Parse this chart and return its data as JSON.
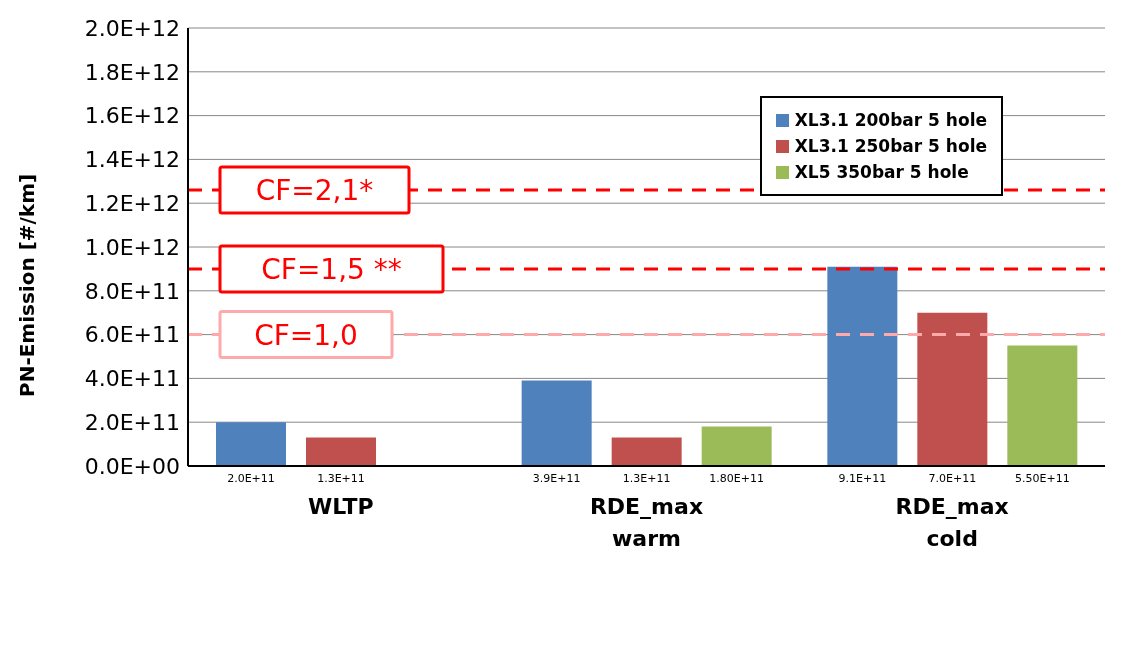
{
  "chart_data": {
    "type": "bar",
    "ylabel": "PN-Emission [#/km]",
    "categories": [
      "WLTP",
      "RDE_max\nwarm",
      "RDE_max\ncold"
    ],
    "series": [
      {
        "name": "XL3.1 200bar 5 hole",
        "color": "#4f81bd",
        "values": [
          200000000000.0,
          390000000000.0,
          910000000000.0
        ],
        "value_labels": [
          "2.0E+11",
          "3.9E+11",
          "9.1E+11"
        ]
      },
      {
        "name": "XL3.1 250bar 5 hole",
        "color": "#c0504d",
        "values": [
          130000000000.0,
          130000000000.0,
          700000000000.0
        ],
        "value_labels": [
          "1.3E+11",
          "1.3E+11",
          "7.0E+11"
        ]
      },
      {
        "name": "XL5 350bar 5 hole",
        "color": "#9bbb59",
        "values": [
          null,
          180000000000.0,
          550000000000.0
        ],
        "value_labels": [
          null,
          "1.80E+11",
          "5.50E+11"
        ]
      }
    ],
    "ylim": [
      0,
      2000000000000.0
    ],
    "yticks": [
      {
        "value": 0,
        "label": "0.0E+00"
      },
      {
        "value": 200000000000.0,
        "label": "2.0E+11"
      },
      {
        "value": 400000000000.0,
        "label": "4.0E+11"
      },
      {
        "value": 600000000000.0,
        "label": "6.0E+11"
      },
      {
        "value": 800000000000.0,
        "label": "8.0E+11"
      },
      {
        "value": 1000000000000.0,
        "label": "1.0E+12"
      },
      {
        "value": 1200000000000.0,
        "label": "1.2E+12"
      },
      {
        "value": 1400000000000.0,
        "label": "1.4E+12"
      },
      {
        "value": 1600000000000.0,
        "label": "1.6E+12"
      },
      {
        "value": 1800000000000.0,
        "label": "1.8E+12"
      },
      {
        "value": 2000000000000.0,
        "label": "2.0E+12"
      }
    ],
    "ref_lines": [
      {
        "axis": "y",
        "value": 1260000000000.0,
        "color": "#ff0000",
        "line_style": "dashed"
      },
      {
        "axis": "y",
        "value": 900000000000.0,
        "color": "#ff0000",
        "line_style": "dashed"
      },
      {
        "axis": "y",
        "value": 600000000000.0,
        "color": "#ffaaaa",
        "line_style": "dashed"
      }
    ],
    "annotations": [
      {
        "text": "CF=2,1*",
        "y": 1260000000000.0
      },
      {
        "text": "CF=1,5 **",
        "y": 900000000000.0
      },
      {
        "text": "CF=1,0",
        "y": 600000000000.0
      }
    ],
    "grid": "y",
    "legend": "top right"
  }
}
